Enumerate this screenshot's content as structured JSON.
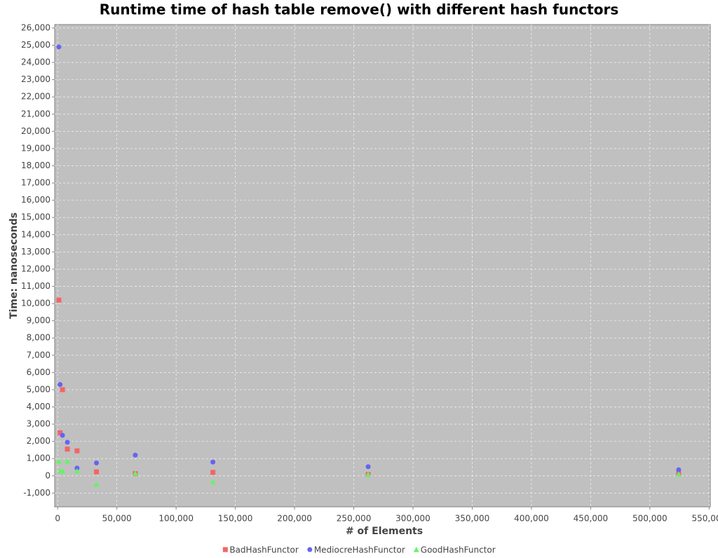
{
  "chart_data": {
    "type": "scatter",
    "title": "Runtime time of hash table remove() with different hash functors",
    "x_label": "# of Elements",
    "y_label": "Time: nanoseconds",
    "x": [
      1024,
      2048,
      4096,
      8192,
      16384,
      32768,
      65536,
      131072,
      262144,
      524288
    ],
    "series": [
      {
        "name": "BadHashFunctor",
        "color": "#f46464",
        "shape": "square",
        "values": [
          10200,
          2500,
          5000,
          1550,
          1450,
          230,
          130,
          200,
          80,
          130
        ]
      },
      {
        "name": "MediocreHashFunctor",
        "color": "#6464f4",
        "shape": "circle",
        "values": [
          24900,
          5300,
          2350,
          1950,
          450,
          750,
          1200,
          800,
          530,
          350
        ]
      },
      {
        "name": "GoodHashFunctor",
        "color": "#64f464",
        "shape": "triangle",
        "values": [
          850,
          280,
          280,
          850,
          280,
          -500,
          150,
          -350,
          80,
          100
        ]
      }
    ],
    "xlim": [
      -2500,
      551000
    ],
    "ylim": [
      -1800,
      26200
    ],
    "xticks": [
      0,
      {
        "value": 50000,
        "label": "50,000"
      },
      {
        "value": 100000,
        "label": "100,000"
      },
      {
        "value": 150000,
        "label": "150,000"
      },
      {
        "value": 200000,
        "label": "200,000"
      },
      {
        "value": 250000,
        "label": "250,000"
      },
      {
        "value": 300000,
        "label": "300,000"
      },
      {
        "value": 350000,
        "label": "350,000"
      },
      {
        "value": 400000,
        "label": "400,000"
      },
      {
        "value": 450000,
        "label": "450,000"
      },
      {
        "value": 500000,
        "label": "500,000"
      },
      {
        "value": 550000,
        "label": "550,000"
      }
    ],
    "yticks": [
      {
        "value": -1000,
        "label": "-1,000"
      },
      0,
      {
        "value": 1000,
        "label": "1,000"
      },
      {
        "value": 2000,
        "label": "2,000"
      },
      {
        "value": 3000,
        "label": "3,000"
      },
      {
        "value": 4000,
        "label": "4,000"
      },
      {
        "value": 5000,
        "label": "5,000"
      },
      {
        "value": 6000,
        "label": "6,000"
      },
      {
        "value": 7000,
        "label": "7,000"
      },
      {
        "value": 8000,
        "label": "8,000"
      },
      {
        "value": 9000,
        "label": "9,000"
      },
      {
        "value": 10000,
        "label": "10,000"
      },
      {
        "value": 11000,
        "label": "11,000"
      },
      {
        "value": 12000,
        "label": "12,000"
      },
      {
        "value": 13000,
        "label": "13,000"
      },
      {
        "value": 14000,
        "label": "14,000"
      },
      {
        "value": 15000,
        "label": "15,000"
      },
      {
        "value": 16000,
        "label": "16,000"
      },
      {
        "value": 17000,
        "label": "17,000"
      },
      {
        "value": 18000,
        "label": "18,000"
      },
      {
        "value": 19000,
        "label": "19,000"
      },
      {
        "value": 20000,
        "label": "20,000"
      },
      {
        "value": 21000,
        "label": "21,000"
      },
      {
        "value": 22000,
        "label": "22,000"
      },
      {
        "value": 23000,
        "label": "23,000"
      },
      {
        "value": 24000,
        "label": "24,000"
      },
      {
        "value": 25000,
        "label": "25,000"
      },
      {
        "value": 26000,
        "label": "26,000"
      }
    ],
    "grid": true
  }
}
